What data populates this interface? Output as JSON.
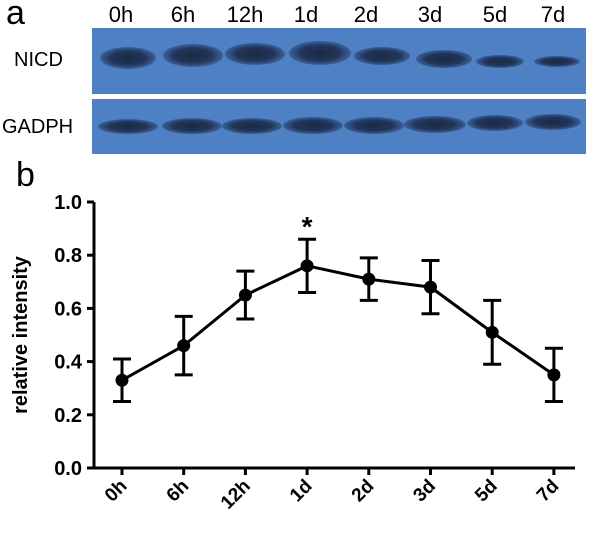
{
  "panel_a": {
    "letter": "a",
    "lanes": [
      "0h",
      "6h",
      "12h",
      "1d",
      "2d",
      "3d",
      "5d",
      "7d"
    ],
    "row_labels": [
      "NICD",
      "GADPH"
    ],
    "blot_color": "#4f80c4",
    "band_color": "#1e2f4f"
  },
  "panel_b": {
    "letter": "b",
    "significance_marker": "*",
    "significance_category": "1d"
  },
  "chart_data": {
    "type": "line",
    "categories": [
      "0h",
      "6h",
      "12h",
      "1d",
      "2d",
      "3d",
      "5d",
      "7d"
    ],
    "series": [
      {
        "values": [
          0.33,
          0.46,
          0.65,
          0.76,
          0.71,
          0.68,
          0.51,
          0.35
        ],
        "error": [
          0.08,
          0.11,
          0.09,
          0.1,
          0.08,
          0.1,
          0.12,
          0.1
        ]
      }
    ],
    "title": "",
    "xlabel": "",
    "ylabel": "relative intensity",
    "ylim": [
      0.0,
      1.0
    ],
    "yticks": [
      "0.0",
      "0.2",
      "0.4",
      "0.6",
      "0.8",
      "1.0"
    ],
    "grid": false,
    "marker": "circle",
    "error_bars": true,
    "line_color": "#000000"
  }
}
